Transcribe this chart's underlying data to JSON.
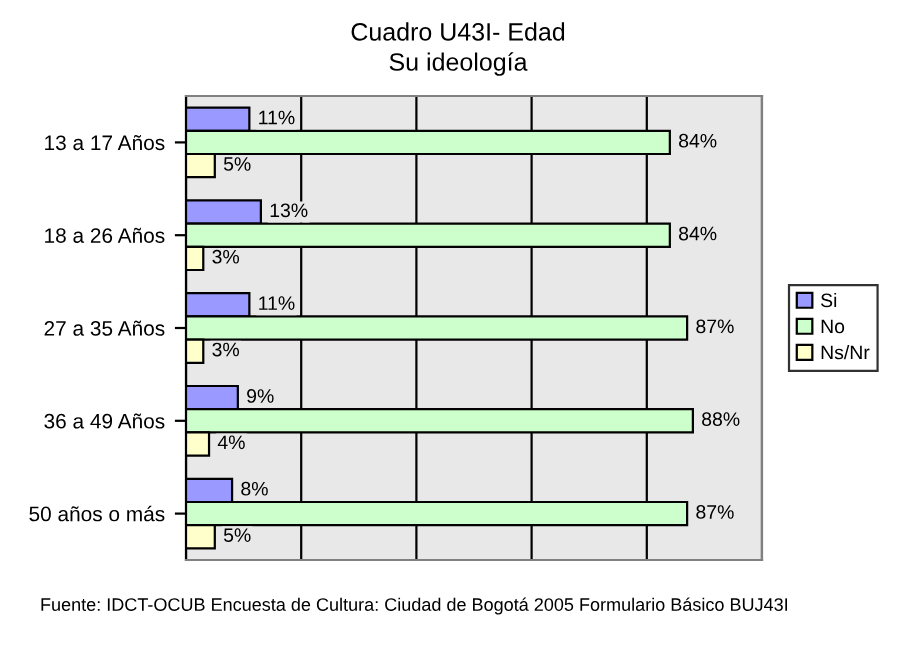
{
  "chart_data": {
    "type": "bar",
    "orientation": "horizontal",
    "title": "Cuadro U43I- Edad",
    "subtitle": "Su ideología",
    "categories": [
      "13 a 17 Años",
      "18 a 26 Años",
      "27 a 35 Años",
      "36 a 49 Años",
      "50 años o más"
    ],
    "series": [
      {
        "name": "Si",
        "color": "#9999ff",
        "values": [
          11,
          13,
          11,
          9,
          8
        ],
        "value_labels": [
          "11%",
          "13%",
          "11%",
          "9%",
          "8%"
        ]
      },
      {
        "name": "No",
        "color": "#ccffcc",
        "values": [
          84,
          84,
          87,
          88,
          87
        ],
        "value_labels": [
          "84%",
          "84%",
          "87%",
          "88%",
          "87%"
        ]
      },
      {
        "name": "Ns/Nr",
        "color": "#ffffcc",
        "values": [
          5,
          3,
          3,
          4,
          5
        ],
        "value_labels": [
          "5%",
          "3%",
          "3%",
          "4%",
          "5%"
        ]
      }
    ],
    "xlim": [
      0,
      100
    ],
    "xticks": [
      {
        "value": 0,
        "label": null
      },
      {
        "value": 20,
        "label": null
      },
      {
        "value": 40,
        "label": null
      },
      {
        "value": 60,
        "label": null
      },
      {
        "value": 80,
        "label": null
      },
      {
        "value": 100,
        "label": null
      }
    ],
    "tick_labels": "y",
    "grid": "x",
    "legend": "right",
    "annotations": [
      "Fuente: IDCT-OCUB Encuesta de Cultura: Ciudad de Bogotá 2005 Formulario Básico BUJ43I"
    ]
  }
}
